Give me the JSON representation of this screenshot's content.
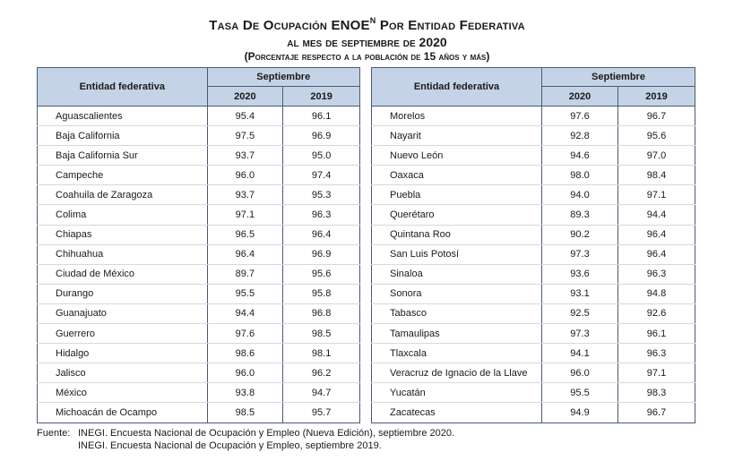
{
  "title": {
    "line1_a": "Tasa De Ocupación ENOE",
    "line1_sup": "N",
    "line1_b": " Por Entidad Federativa",
    "line2": "al mes de septiembre de 2020",
    "line3": "(Porcentaje respecto a la población de 15 años y más)"
  },
  "table_headers": {
    "entity": "Entidad federativa",
    "month": "Septiembre",
    "year1": "2020",
    "year2": "2019"
  },
  "left_rows": [
    {
      "name": "Aguascalientes",
      "v2020": "95.4",
      "v2019": "96.1"
    },
    {
      "name": "Baja California",
      "v2020": "97.5",
      "v2019": "96.9"
    },
    {
      "name": "Baja California Sur",
      "v2020": "93.7",
      "v2019": "95.0"
    },
    {
      "name": "Campeche",
      "v2020": "96.0",
      "v2019": "97.4"
    },
    {
      "name": "Coahuila de Zaragoza",
      "v2020": "93.7",
      "v2019": "95.3"
    },
    {
      "name": "Colima",
      "v2020": "97.1",
      "v2019": "96.3"
    },
    {
      "name": "Chiapas",
      "v2020": "96.5",
      "v2019": "96.4"
    },
    {
      "name": "Chihuahua",
      "v2020": "96.4",
      "v2019": "96.9"
    },
    {
      "name": "Ciudad de México",
      "v2020": "89.7",
      "v2019": "95.6"
    },
    {
      "name": "Durango",
      "v2020": "95.5",
      "v2019": "95.8"
    },
    {
      "name": "Guanajuato",
      "v2020": "94.4",
      "v2019": "96.8"
    },
    {
      "name": "Guerrero",
      "v2020": "97.6",
      "v2019": "98.5"
    },
    {
      "name": "Hidalgo",
      "v2020": "98.6",
      "v2019": "98.1"
    },
    {
      "name": "Jalisco",
      "v2020": "96.0",
      "v2019": "96.2"
    },
    {
      "name": "México",
      "v2020": "93.8",
      "v2019": "94.7"
    },
    {
      "name": "Michoacán de Ocampo",
      "v2020": "98.5",
      "v2019": "95.7"
    }
  ],
  "right_rows": [
    {
      "name": "Morelos",
      "v2020": "97.6",
      "v2019": "96.7"
    },
    {
      "name": "Nayarit",
      "v2020": "92.8",
      "v2019": "95.6"
    },
    {
      "name": "Nuevo León",
      "v2020": "94.6",
      "v2019": "97.0"
    },
    {
      "name": "Oaxaca",
      "v2020": "98.0",
      "v2019": "98.4"
    },
    {
      "name": "Puebla",
      "v2020": "94.0",
      "v2019": "97.1"
    },
    {
      "name": "Querétaro",
      "v2020": "89.3",
      "v2019": "94.4"
    },
    {
      "name": "Quintana Roo",
      "v2020": "90.2",
      "v2019": "96.4"
    },
    {
      "name": "San Luis Potosí",
      "v2020": "97.3",
      "v2019": "96.4"
    },
    {
      "name": "Sinaloa",
      "v2020": "93.6",
      "v2019": "96.3"
    },
    {
      "name": "Sonora",
      "v2020": "93.1",
      "v2019": "94.8"
    },
    {
      "name": "Tabasco",
      "v2020": "92.5",
      "v2019": "92.6"
    },
    {
      "name": "Tamaulipas",
      "v2020": "97.3",
      "v2019": "96.1"
    },
    {
      "name": "Tlaxcala",
      "v2020": "94.1",
      "v2019": "96.3"
    },
    {
      "name": "Veracruz de Ignacio de la Llave",
      "v2020": "96.0",
      "v2019": "97.1"
    },
    {
      "name": "Yucatán",
      "v2020": "95.5",
      "v2019": "98.3"
    },
    {
      "name": "Zacatecas",
      "v2020": "94.9",
      "v2019": "96.7"
    }
  ],
  "source": {
    "label": "Fuente:",
    "line1": "INEGI. Encuesta Nacional de Ocupación y Empleo (Nueva Edición), septiembre 2020.",
    "line2": "INEGI. Encuesta Nacional de Ocupación y Empleo, septiembre 2019."
  },
  "colors": {
    "header_bg": "#c5d3e6",
    "border": "#4a5b74"
  }
}
